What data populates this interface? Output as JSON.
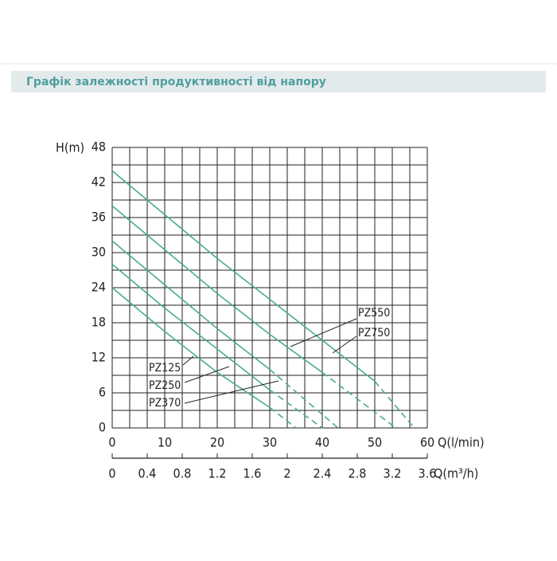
{
  "header": {
    "title": "Графік залежності продуктивності від напору"
  },
  "chart_data": {
    "type": "line",
    "ylabel": "H(m)",
    "xlabel": "Q(l/min)",
    "x2label": "Q(m³/h)",
    "xlim": [
      0,
      60
    ],
    "xticks": [
      0,
      10,
      20,
      30,
      40,
      50,
      60
    ],
    "x2lim": [
      0,
      3.6
    ],
    "x2ticks": [
      0,
      0.4,
      0.8,
      1.2,
      1.6,
      2,
      2.4,
      2.8,
      3.2,
      3.6
    ],
    "ylim": [
      0,
      48
    ],
    "yticks": [
      0,
      6,
      12,
      18,
      24,
      30,
      36,
      42,
      48
    ],
    "grid": true,
    "series": [
      {
        "name": "PZ125",
        "color": "#4aaa95",
        "x": [
          0,
          10,
          20,
          30,
          35
        ],
        "values": [
          24,
          16.5,
          9.5,
          3.5,
          0
        ]
      },
      {
        "name": "PZ250",
        "color": "#4aaa95",
        "x": [
          0,
          10,
          20,
          30,
          40
        ],
        "values": [
          28,
          20.5,
          13.5,
          6.5,
          0
        ]
      },
      {
        "name": "PZ370",
        "color": "#4aaa95",
        "x": [
          0,
          10,
          20,
          30,
          43
        ],
        "values": [
          32,
          24.5,
          17,
          10,
          0
        ]
      },
      {
        "name": "PZ550",
        "color": "#4aaa95",
        "x": [
          0,
          10,
          20,
          30,
          40,
          54
        ],
        "values": [
          38,
          30.5,
          23,
          16,
          9.5,
          0
        ]
      },
      {
        "name": "PZ750",
        "color": "#4aaa95",
        "x": [
          0,
          10,
          20,
          30,
          40,
          50,
          57.5
        ],
        "values": [
          44,
          36.5,
          29,
          22,
          15,
          8,
          0
        ]
      }
    ]
  }
}
